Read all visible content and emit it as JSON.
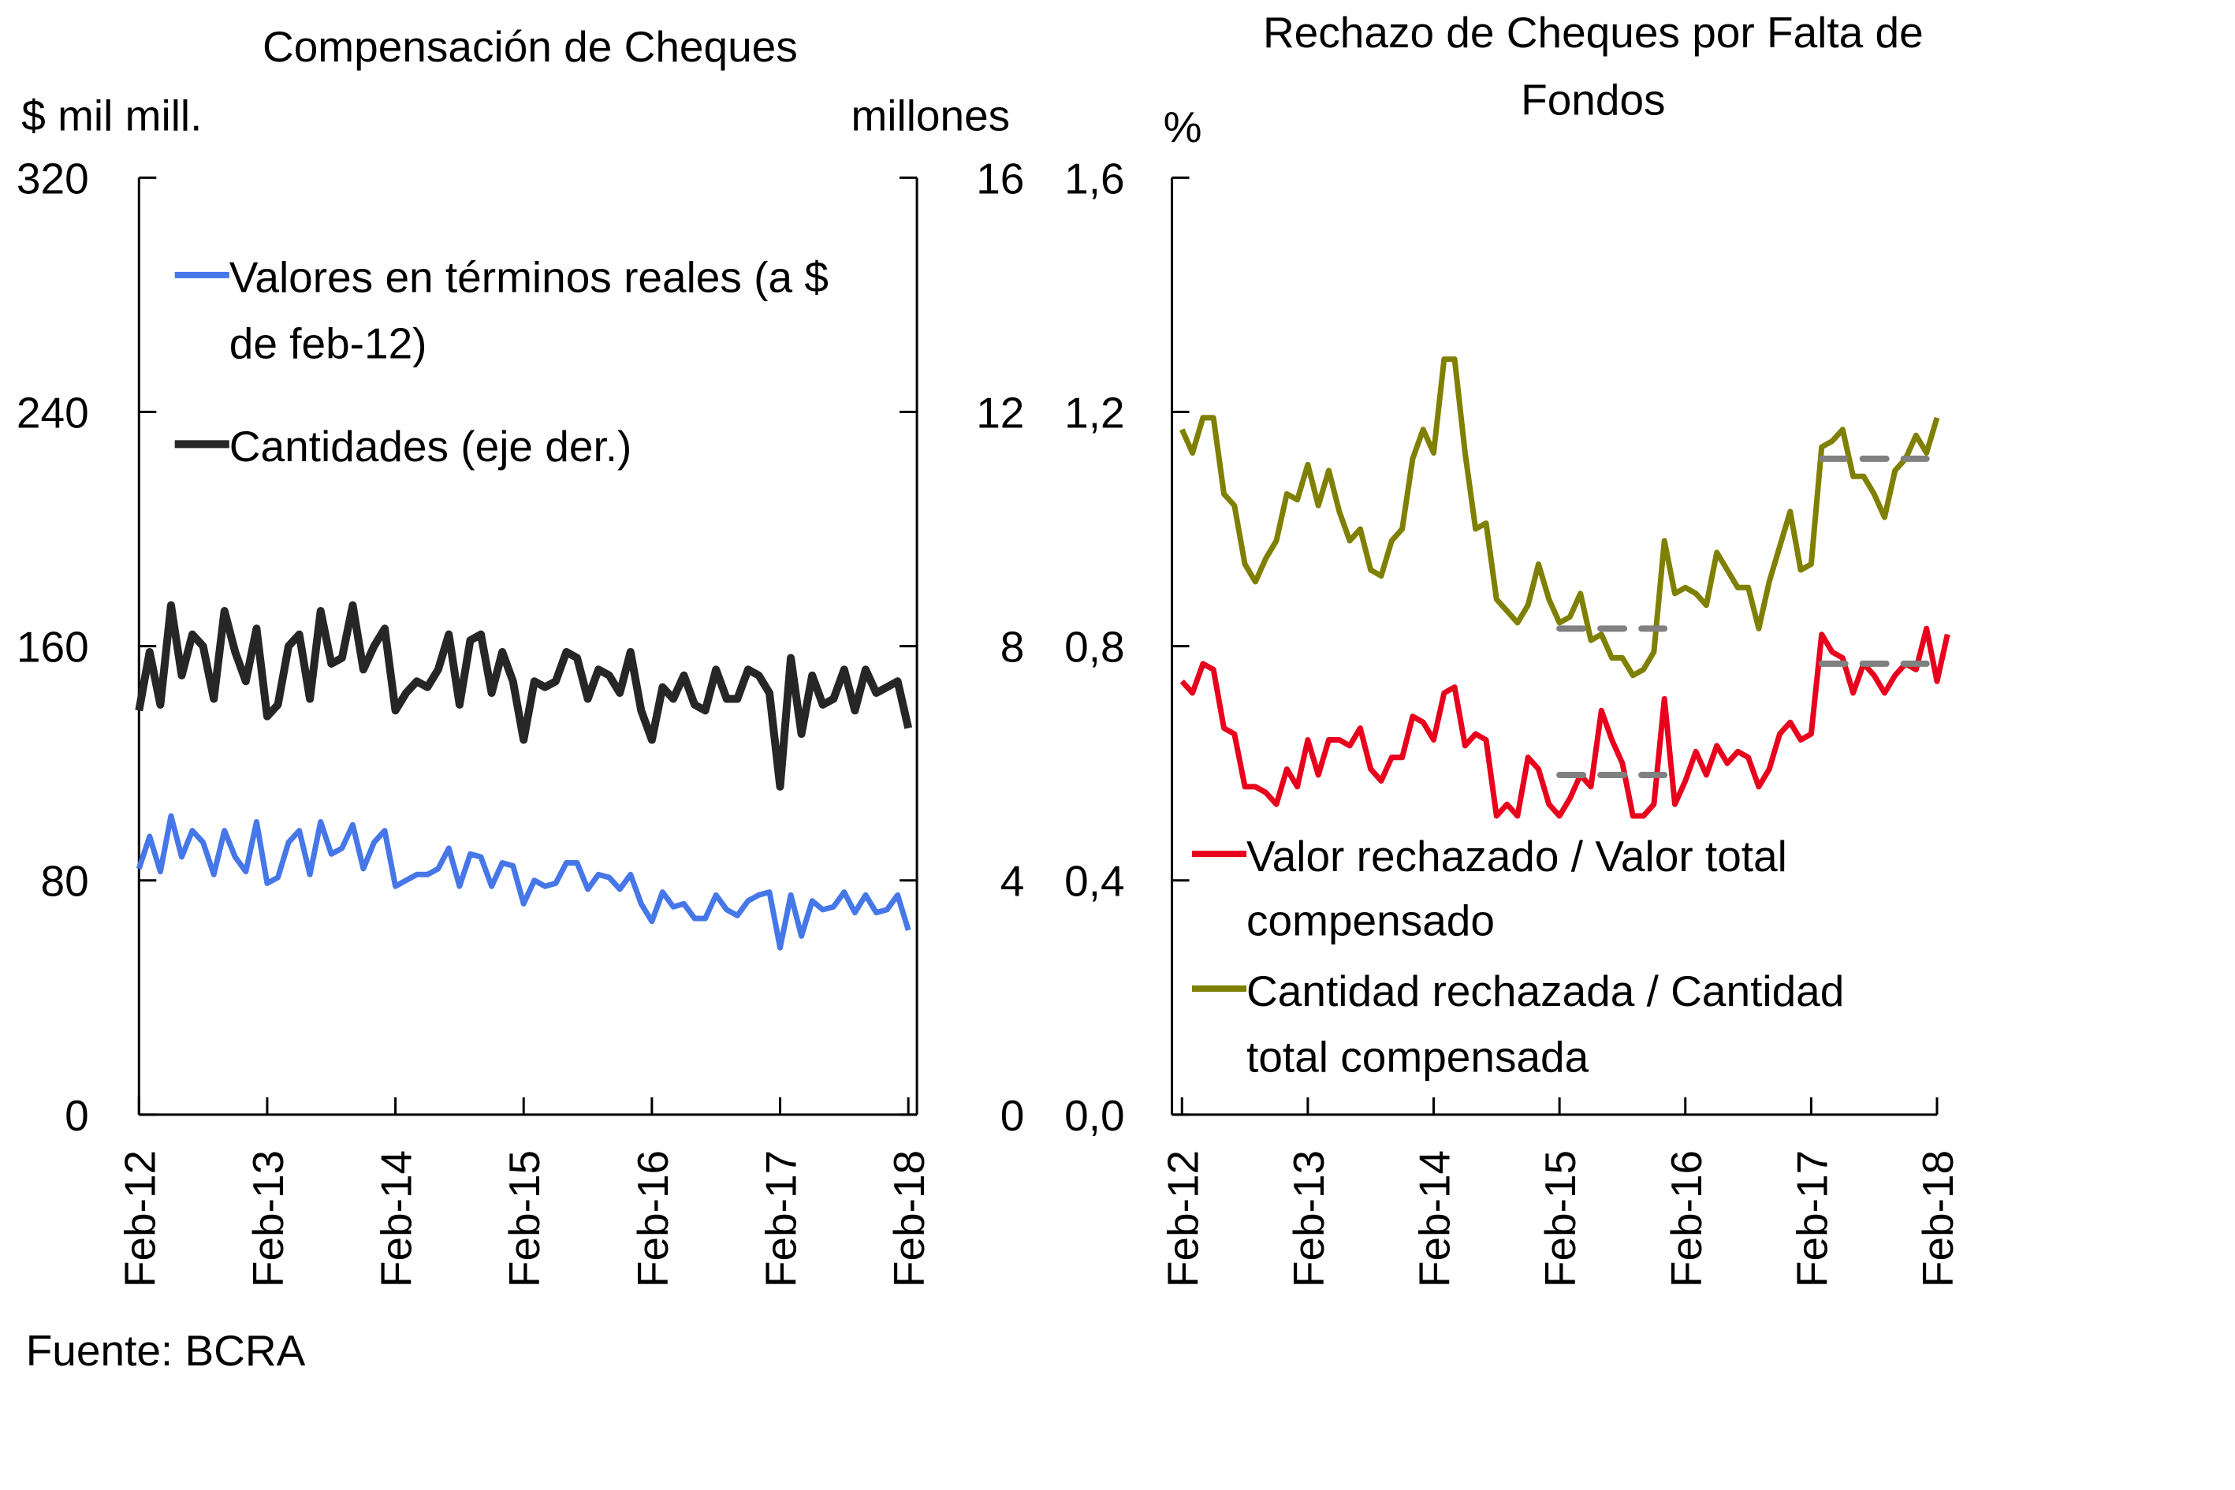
{
  "source": "Fuente: BCRA",
  "chart_data": [
    {
      "type": "line",
      "title": "Compensación de Cheques",
      "ylabel": "$ mil mill.",
      "y2label": "millones",
      "ylim": [
        0,
        320
      ],
      "y2lim": [
        0,
        16
      ],
      "yticks": [
        "0",
        "80",
        "160",
        "240",
        "320"
      ],
      "y2ticks": [
        "0",
        "4",
        "8",
        "12",
        "16"
      ],
      "xticks": [
        "Feb-12",
        "Feb-13",
        "Feb-14",
        "Feb-15",
        "Feb-16",
        "Feb-17",
        "Feb-18"
      ],
      "legend": "top-left",
      "series": [
        {
          "name": "Valores en términos reales (a $ de feb-12)",
          "axis": "left",
          "color": "#4677E8",
          "values": [
            84,
            95,
            83,
            102,
            88,
            97,
            93,
            82,
            97,
            88,
            83,
            100,
            79,
            81,
            93,
            97,
            82,
            100,
            89,
            91,
            99,
            84,
            93,
            97,
            78,
            80,
            82,
            82,
            84,
            91,
            78,
            89,
            88,
            78,
            86,
            85,
            72,
            80,
            78,
            79,
            86,
            86,
            77,
            82,
            81,
            77,
            82,
            72,
            66,
            76,
            71,
            72,
            67,
            67,
            75,
            70,
            68,
            73,
            75,
            76,
            57,
            75,
            61,
            73,
            70,
            71,
            76,
            69,
            75,
            69,
            70,
            75,
            63
          ]
        },
        {
          "name": "Cantidades (eje der.)",
          "axis": "right",
          "color": "#262626",
          "values": [
            6.9,
            7.9,
            7.0,
            8.7,
            7.5,
            8.2,
            8.0,
            7.1,
            8.6,
            7.9,
            7.4,
            8.3,
            6.8,
            7.0,
            8.0,
            8.2,
            7.1,
            8.6,
            7.7,
            7.8,
            8.7,
            7.6,
            8.0,
            8.3,
            6.9,
            7.2,
            7.4,
            7.3,
            7.6,
            8.2,
            7.0,
            8.1,
            8.2,
            7.2,
            7.9,
            7.4,
            6.4,
            7.4,
            7.3,
            7.4,
            7.9,
            7.8,
            7.1,
            7.6,
            7.5,
            7.2,
            7.9,
            6.9,
            6.4,
            7.3,
            7.1,
            7.5,
            7.0,
            6.9,
            7.6,
            7.1,
            7.1,
            7.6,
            7.5,
            7.2,
            5.6,
            7.8,
            6.5,
            7.5,
            7.0,
            7.1,
            7.6,
            6.9,
            7.6,
            7.2,
            7.3,
            7.4,
            6.6
          ]
        }
      ]
    },
    {
      "type": "line",
      "title": "Rechazo de Cheques por Falta de Fondos",
      "ylabel": "%",
      "ylim": [
        0,
        1.6
      ],
      "yticks": [
        "0,0",
        "0,4",
        "0,8",
        "1,2",
        "1,6"
      ],
      "xticks": [
        "Feb-12",
        "Feb-13",
        "Feb-14",
        "Feb-15",
        "Feb-16",
        "Feb-17",
        "Feb-18"
      ],
      "legend": "bottom-left",
      "series": [
        {
          "name": "Valor rechazado / Valor total compensado",
          "color": "#E8001C",
          "values": [
            0.74,
            0.72,
            0.77,
            0.76,
            0.66,
            0.65,
            0.56,
            0.56,
            0.55,
            0.53,
            0.59,
            0.56,
            0.64,
            0.58,
            0.64,
            0.64,
            0.63,
            0.66,
            0.59,
            0.57,
            0.61,
            0.61,
            0.68,
            0.67,
            0.64,
            0.72,
            0.73,
            0.63,
            0.65,
            0.64,
            0.51,
            0.53,
            0.51,
            0.61,
            0.59,
            0.53,
            0.51,
            0.54,
            0.58,
            0.56,
            0.69,
            0.64,
            0.6,
            0.51,
            0.51,
            0.53,
            0.71,
            0.53,
            0.57,
            0.62,
            0.58,
            0.63,
            0.6,
            0.62,
            0.61,
            0.56,
            0.59,
            0.65,
            0.67,
            0.64,
            0.65,
            0.82,
            0.79,
            0.78,
            0.72,
            0.77,
            0.75,
            0.72,
            0.75,
            0.77,
            0.76,
            0.83,
            0.74,
            0.82
          ]
        },
        {
          "name": "Cantidad rechazada / Cantidad total compensada",
          "color": "#7F7F00",
          "values": [
            1.17,
            1.13,
            1.19,
            1.19,
            1.06,
            1.04,
            0.94,
            0.91,
            0.95,
            0.98,
            1.06,
            1.05,
            1.11,
            1.04,
            1.1,
            1.03,
            0.98,
            1.0,
            0.93,
            0.92,
            0.98,
            1.0,
            1.12,
            1.17,
            1.13,
            1.29,
            1.29,
            1.13,
            1.0,
            1.01,
            0.88,
            0.86,
            0.84,
            0.87,
            0.94,
            0.88,
            0.84,
            0.85,
            0.89,
            0.81,
            0.82,
            0.78,
            0.78,
            0.75,
            0.76,
            0.79,
            0.98,
            0.89,
            0.9,
            0.89,
            0.87,
            0.96,
            0.93,
            0.9,
            0.9,
            0.83,
            0.91,
            0.97,
            1.03,
            0.93,
            0.94,
            1.14,
            1.15,
            1.17,
            1.09,
            1.09,
            1.06,
            1.02,
            1.1,
            1.12,
            1.16,
            1.13,
            1.19
          ]
        }
      ],
      "reference_lines": [
        {
          "series": "Valor rechazado / Valor total compensado",
          "from_index": 36,
          "to_index": 46,
          "value": 0.58
        },
        {
          "series": "Valor rechazado / Valor total compensado",
          "from_index": 61,
          "to_index": 71,
          "value": 0.77
        },
        {
          "series": "Cantidad rechazada / Cantidad total compensada",
          "from_index": 36,
          "to_index": 46,
          "value": 0.83
        },
        {
          "series": "Cantidad rechazada / Cantidad total compensada",
          "from_index": 61,
          "to_index": 71,
          "value": 1.12
        }
      ]
    }
  ]
}
